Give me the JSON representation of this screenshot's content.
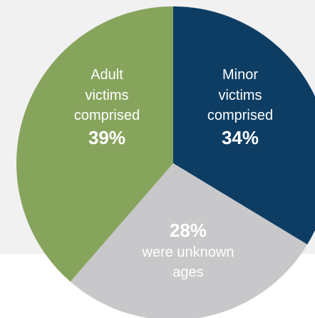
{
  "chart_data": {
    "type": "pie",
    "slices": [
      {
        "label_lines": [
          "Minor",
          "victims",
          "comprised"
        ],
        "value_label": "34%",
        "value": 34,
        "color": "#0e3d64"
      },
      {
        "label_lines": [
          "were unknown",
          "ages"
        ],
        "value_label": "28%",
        "value": 28,
        "color": "#c8c8ca"
      },
      {
        "label_lines": [
          "Adult",
          "victims",
          "comprised"
        ],
        "value_label": "39%",
        "value": 39,
        "color": "#87a45d"
      }
    ]
  }
}
